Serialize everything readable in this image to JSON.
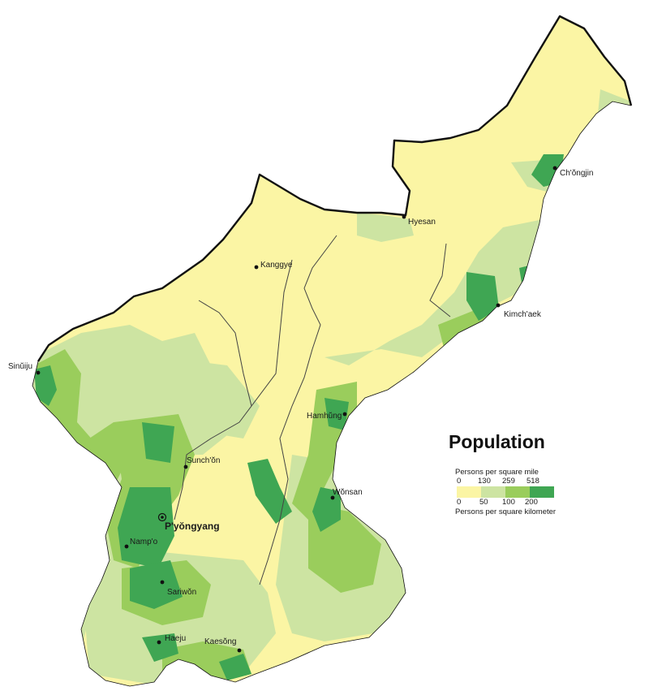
{
  "title": "Population",
  "legend": {
    "unit_top": "Persons per square mile",
    "ticks_top": [
      "0",
      "130",
      "259",
      "518"
    ],
    "ticks_bottom": [
      "0",
      "50",
      "100",
      "200"
    ],
    "unit_bottom": "Persons per square kilometer",
    "classes": [
      {
        "color": "#fbf5a4"
      },
      {
        "color": "#cde4a2"
      },
      {
        "color": "#9acd5c"
      },
      {
        "color": "#3fa653"
      }
    ]
  },
  "colors": {
    "background": "#ffffff",
    "border": "#111111",
    "river": "#444444"
  },
  "cities": [
    {
      "id": "chongjin",
      "name": "Ch'ŏngjin",
      "capital": false
    },
    {
      "id": "hyesan",
      "name": "Hyesan",
      "capital": false
    },
    {
      "id": "kanggye",
      "name": "Kanggye",
      "capital": false
    },
    {
      "id": "kimchaek",
      "name": "Kimch'aek",
      "capital": false
    },
    {
      "id": "sinuiju",
      "name": "Sinŭiju",
      "capital": false
    },
    {
      "id": "hamhung",
      "name": "Hamhŭng",
      "capital": false
    },
    {
      "id": "sunchon",
      "name": "Sunch'ŏn",
      "capital": false
    },
    {
      "id": "pyongyang",
      "name": "P'yŏngyang",
      "capital": true
    },
    {
      "id": "wonsan",
      "name": "Wŏnsan",
      "capital": false
    },
    {
      "id": "nampo",
      "name": "Namp'o",
      "capital": false
    },
    {
      "id": "sariwon",
      "name": "Sariwŏn",
      "capital": false
    },
    {
      "id": "haeju",
      "name": "Haeju",
      "capital": false
    },
    {
      "id": "kaesong",
      "name": "Kaesŏng",
      "capital": false
    }
  ]
}
